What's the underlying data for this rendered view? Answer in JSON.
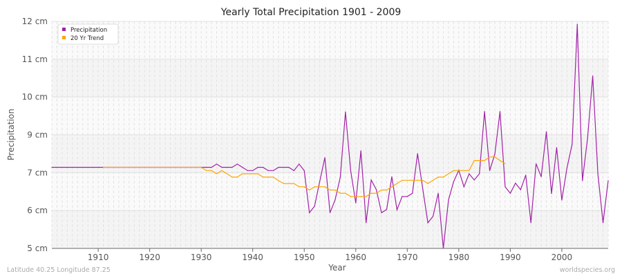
{
  "chart_data": {
    "type": "line",
    "title": "Yearly Total Precipitation 1901 - 2009",
    "xlabel": "Year",
    "ylabel": "Precipitation",
    "xlim": [
      1901,
      2009
    ],
    "ylim": [
      5,
      12
    ],
    "x_ticks": [
      1910,
      1920,
      1930,
      1940,
      1950,
      1960,
      1970,
      1980,
      1990,
      2000
    ],
    "y_ticks": [
      {
        "value": 12,
        "label": "12 cm"
      },
      {
        "value": 10.833,
        "label": "11 cm"
      },
      {
        "value": 9.667,
        "label": "10 cm"
      },
      {
        "value": 8.5,
        "label": "9 cm"
      },
      {
        "value": 7.333,
        "label": "7 cm"
      },
      {
        "value": 6.167,
        "label": "6 cm"
      },
      {
        "value": 5,
        "label": "5 cm"
      }
    ],
    "grid": true,
    "legend_position": "top-left",
    "series": [
      {
        "name": "Precipitation",
        "color": "#a21fa8",
        "start_year": 1901,
        "values": [
          7.5,
          7.5,
          7.5,
          7.5,
          7.5,
          7.5,
          7.5,
          7.5,
          7.5,
          7.5,
          7.5,
          7.5,
          7.5,
          7.5,
          7.5,
          7.5,
          7.5,
          7.5,
          7.5,
          7.5,
          7.5,
          7.5,
          7.5,
          7.5,
          7.5,
          7.5,
          7.5,
          7.5,
          7.5,
          7.5,
          7.5,
          7.5,
          7.6,
          7.5,
          7.5,
          7.5,
          7.6,
          7.5,
          7.4,
          7.4,
          7.5,
          7.5,
          7.4,
          7.4,
          7.5,
          7.5,
          7.5,
          7.4,
          7.6,
          7.4,
          6.1,
          6.3,
          7.06,
          7.8,
          6.1,
          6.5,
          7.2,
          9.21,
          7.41,
          6.4,
          8.01,
          5.79,
          7.11,
          6.81,
          6.1,
          6.2,
          7.21,
          6.19,
          6.6,
          6.6,
          6.7,
          7.92,
          6.84,
          5.79,
          5.99,
          6.7,
          5.0,
          6.49,
          7.06,
          7.41,
          6.9,
          7.3,
          7.11,
          7.3,
          9.22,
          7.4,
          7.91,
          9.22,
          6.9,
          6.7,
          7.01,
          6.81,
          7.26,
          5.79,
          7.61,
          7.21,
          8.6,
          6.69,
          8.11,
          6.49,
          7.48,
          8.21,
          11.91,
          7.09,
          8.4,
          10.32,
          7.3,
          5.79,
          7.09
        ]
      },
      {
        "name": "20 Yr Trend",
        "color": "#ffa500",
        "start_year": 1911,
        "values": [
          7.5,
          7.5,
          7.5,
          7.5,
          7.5,
          7.5,
          7.5,
          7.5,
          7.5,
          7.5,
          7.5,
          7.5,
          7.5,
          7.5,
          7.5,
          7.5,
          7.5,
          7.5,
          7.5,
          7.5,
          7.4,
          7.4,
          7.3,
          7.4,
          7.3,
          7.2,
          7.2,
          7.3,
          7.3,
          7.3,
          7.3,
          7.2,
          7.2,
          7.2,
          7.09,
          7.0,
          7.0,
          7.0,
          6.9,
          6.9,
          6.8,
          6.9,
          6.9,
          6.9,
          6.8,
          6.8,
          6.7,
          6.7,
          6.6,
          6.6,
          6.6,
          6.6,
          6.7,
          6.7,
          6.8,
          6.8,
          6.9,
          7.0,
          7.1,
          7.1,
          7.1,
          7.1,
          7.1,
          7.0,
          7.1,
          7.2,
          7.2,
          7.3,
          7.4,
          7.4,
          7.4,
          7.4,
          7.71,
          7.71,
          7.71,
          7.82,
          7.82,
          7.71,
          7.61
        ]
      }
    ]
  },
  "footer": {
    "location": "Latitude 40.25 Longitude 87.25",
    "source": "worldspecies.org"
  }
}
